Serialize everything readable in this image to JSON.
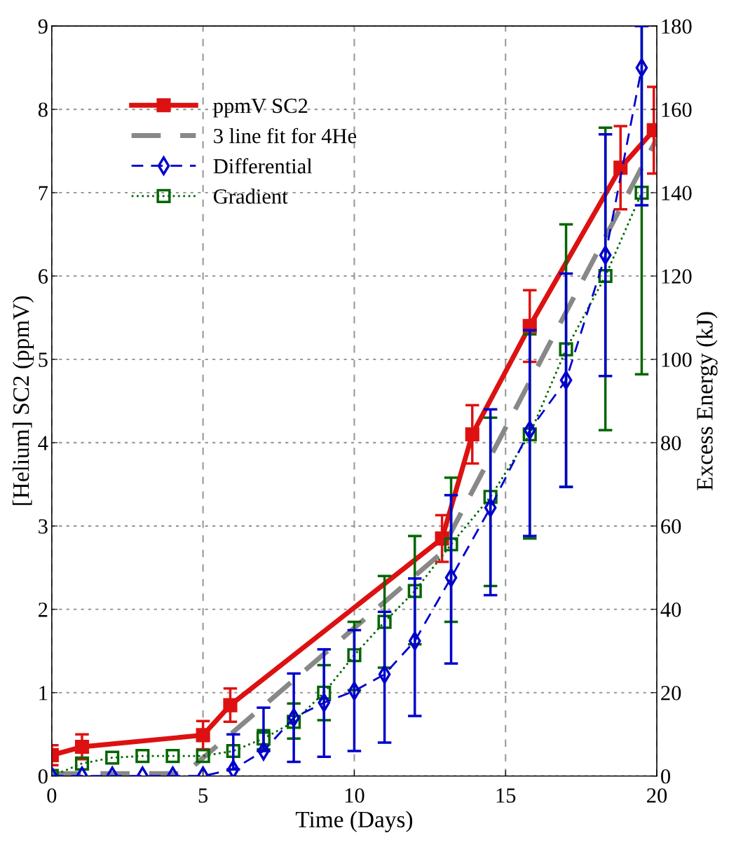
{
  "chart_data": {
    "type": "line",
    "xlabel": "Time (Days)",
    "ylabel": "[Helium] SC2 (ppmV)",
    "y2label": "Excess Energy (kJ)",
    "xlim": [
      0,
      20
    ],
    "xticks": [
      0,
      5,
      10,
      15,
      20
    ],
    "ylim": [
      0,
      9
    ],
    "yticks": [
      0,
      1,
      2,
      3,
      4,
      5,
      6,
      7,
      8,
      9
    ],
    "y2lim": [
      0,
      180
    ],
    "y2ticks": [
      0,
      20,
      40,
      60,
      80,
      100,
      120,
      140,
      160,
      180
    ],
    "grid": true,
    "legend": "top left",
    "series": [
      {
        "name": "ppmV SC2",
        "color": "#dd1111",
        "marker": "square",
        "line_style": "solid",
        "x": [
          0,
          1,
          5,
          5.9,
          12.9,
          13.9,
          15.8,
          18.8,
          19.9
        ],
        "values": [
          0.25,
          0.35,
          0.49,
          0.85,
          2.85,
          4.1,
          5.4,
          7.3,
          7.75
        ],
        "errors": [
          0.12,
          0.15,
          0.17,
          0.2,
          0.28,
          0.35,
          0.43,
          0.5,
          0.52
        ]
      },
      {
        "name": "3 line fit for 4He",
        "color": "#888888",
        "marker": "none",
        "line_style": "dashed",
        "x": [
          0,
          4.4,
          12.8,
          20
        ],
        "values": [
          0.03,
          0.03,
          2.65,
          7.65
        ]
      },
      {
        "name": "Differential",
        "color": "#0000cc",
        "marker": "diamond",
        "line_style": "dashed",
        "axis": "y2",
        "x": [
          0,
          1,
          2,
          3,
          4,
          5,
          6,
          7,
          8,
          9,
          10,
          11,
          12,
          13.2,
          14.5,
          15.8,
          17,
          18.3,
          19.5
        ],
        "values": [
          0,
          0,
          0,
          0,
          0,
          0,
          1.6,
          6,
          14,
          17.6,
          20.4,
          24.4,
          32.4,
          47.6,
          64.4,
          83,
          95,
          125,
          170
        ],
        "errors": [
          null,
          null,
          null,
          null,
          null,
          null,
          [
            1.6,
            10
          ],
          [
            6,
            16.4
          ],
          [
            3.4,
            24.6
          ],
          [
            4.6,
            30.4
          ],
          [
            6,
            35
          ],
          [
            8,
            39.4
          ],
          [
            14.4,
            47.4
          ],
          [
            27,
            67.4
          ],
          [
            43.4,
            88
          ],
          [
            57.6,
            107
          ],
          [
            69.4,
            120.6
          ],
          [
            96,
            154
          ],
          [
            137,
            180
          ]
        ]
      },
      {
        "name": "Gradient",
        "color": "#006600",
        "marker": "square",
        "line_style": "dotted",
        "axis": "y2",
        "x": [
          0,
          1,
          2,
          3,
          4,
          5,
          6,
          7,
          8,
          9,
          10,
          11,
          12,
          13.2,
          14.5,
          15.8,
          17,
          18.3,
          19.5
        ],
        "values": [
          0,
          3,
          4.4,
          4.8,
          4.8,
          4.8,
          6,
          9,
          13,
          20,
          29,
          37,
          44.4,
          55.6,
          67,
          82,
          102.4,
          120,
          140
        ],
        "errors": [
          null,
          null,
          null,
          null,
          null,
          null,
          null,
          [
            6.4,
            11
          ],
          [
            9,
            17.4
          ],
          [
            13.4,
            26.6
          ],
          [
            20.6,
            37
          ],
          [
            26,
            48
          ],
          [
            31.6,
            57.6
          ],
          [
            37,
            71.6
          ],
          [
            45.6,
            86
          ],
          [
            57,
            106
          ],
          [
            69.4,
            132.4
          ],
          [
            83,
            155.6
          ],
          [
            96.4,
            180
          ]
        ]
      }
    ]
  }
}
